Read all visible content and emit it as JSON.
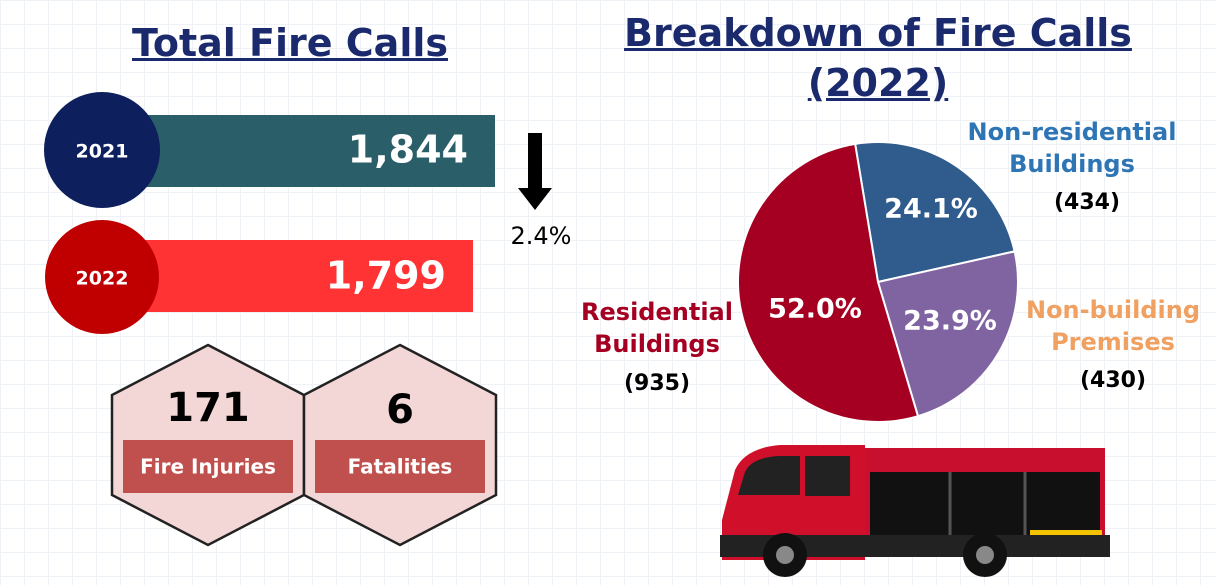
{
  "left": {
    "title": "Total Fire Calls",
    "years": [
      {
        "year": "2021",
        "calls": "1,844"
      },
      {
        "year": "2022",
        "calls": "1,799"
      }
    ],
    "change": "2.4%",
    "stats": [
      {
        "value": "171",
        "label": "Fire Injuries"
      },
      {
        "value": "6",
        "label": "Fatalities"
      }
    ]
  },
  "chart_data": {
    "type": "pie",
    "title": "Breakdown of Fire Calls (2022)",
    "categories": [
      "Non-residential Buildings",
      "Non-building Premises",
      "Residential Buildings"
    ],
    "values": [
      24.1,
      23.9,
      52.0
    ],
    "value_labels": [
      "24.1%",
      "23.9%",
      "52.0%"
    ],
    "category_counts": [
      "(434)",
      "(430)",
      "(935)"
    ],
    "colors": [
      "#2f5b8d",
      "#8064a2",
      "#a50021"
    ],
    "label_colors": [
      "#2e75b6",
      "#f0a060",
      "#a50021"
    ]
  }
}
